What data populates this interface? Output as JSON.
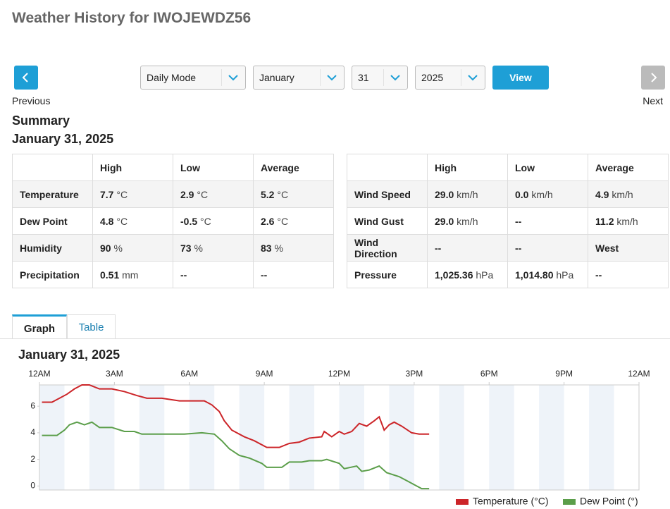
{
  "header": {
    "title": "Weather History for IWOJEWDZ56"
  },
  "controls": {
    "previous": "Previous",
    "next": "Next",
    "mode": "Daily Mode",
    "month": "January",
    "day": "31",
    "year": "2025",
    "view": "View"
  },
  "summary": {
    "title": "Summary",
    "date": "January 31, 2025"
  },
  "table_left": {
    "header": [
      "High",
      "Low",
      "Average"
    ],
    "rows": [
      {
        "label": "Temperature",
        "cells": [
          {
            "value": "7.7",
            "unit": "°C"
          },
          {
            "value": "2.9",
            "unit": "°C"
          },
          {
            "value": "5.2",
            "unit": "°C"
          }
        ]
      },
      {
        "label": "Dew Point",
        "cells": [
          {
            "value": "4.8",
            "unit": "°C"
          },
          {
            "value": "-0.5",
            "unit": "°C"
          },
          {
            "value": "2.6",
            "unit": "°C"
          }
        ]
      },
      {
        "label": "Humidity",
        "cells": [
          {
            "value": "90",
            "unit": "%"
          },
          {
            "value": "73",
            "unit": "%"
          },
          {
            "value": "83",
            "unit": "%"
          }
        ]
      },
      {
        "label": "Precipitation",
        "cells": [
          {
            "value": "0.51",
            "unit": "mm"
          },
          {
            "value": "--"
          },
          {
            "value": "--"
          }
        ]
      }
    ]
  },
  "table_right": {
    "header": [
      "High",
      "Low",
      "Average"
    ],
    "rows": [
      {
        "label": "Wind Speed",
        "cells": [
          {
            "value": "29.0",
            "unit": "km/h"
          },
          {
            "value": "0.0",
            "unit": "km/h"
          },
          {
            "value": "4.9",
            "unit": "km/h"
          }
        ]
      },
      {
        "label": "Wind Gust",
        "cells": [
          {
            "value": "29.0",
            "unit": "km/h"
          },
          {
            "value": "--"
          },
          {
            "value": "11.2",
            "unit": "km/h"
          }
        ]
      },
      {
        "label": "Wind Direction",
        "cells": [
          {
            "value": "--"
          },
          {
            "value": "--"
          },
          {
            "value": "West"
          }
        ]
      },
      {
        "label": "Pressure",
        "cells": [
          {
            "value": "1,025.36",
            "unit": "hPa"
          },
          {
            "value": "1,014.80",
            "unit": "hPa"
          },
          {
            "value": "--"
          }
        ]
      }
    ]
  },
  "tabs": [
    "Graph",
    "Table"
  ],
  "chart_data": {
    "type": "line",
    "title": "January 31, 2025",
    "xlim": [
      0,
      24
    ],
    "xticks": [
      {
        "value": 0,
        "label": "12AM"
      },
      {
        "value": 3,
        "label": "3AM"
      },
      {
        "value": 6,
        "label": "6AM"
      },
      {
        "value": 9,
        "label": "9AM"
      },
      {
        "value": 12,
        "label": "12PM"
      },
      {
        "value": 15,
        "label": "3PM"
      },
      {
        "value": 18,
        "label": "6PM"
      },
      {
        "value": 21,
        "label": "9PM"
      },
      {
        "value": 24,
        "label": "12AM"
      }
    ],
    "ylim": [
      -0.3,
      7.6
    ],
    "yticks": [
      0,
      2,
      4,
      6
    ],
    "series": [
      {
        "name": "Temperature (°C)",
        "color": "#cc2529",
        "x": [
          0.1,
          0.5,
          0.8,
          1.1,
          1.4,
          1.7,
          2.0,
          2.4,
          2.9,
          3.4,
          3.9,
          4.3,
          4.9,
          5.6,
          6.6,
          6.9,
          7.2,
          7.4,
          7.7,
          8.2,
          8.6,
          9.1,
          9.6,
          10.0,
          10.4,
          10.8,
          11.3,
          11.4,
          11.7,
          12.0,
          12.2,
          12.5,
          12.8,
          13.1,
          13.4,
          13.6,
          13.8,
          14.0,
          14.2,
          14.5,
          14.9,
          15.2,
          15.6
        ],
        "values": [
          6.3,
          6.3,
          6.6,
          6.9,
          7.3,
          7.6,
          7.6,
          7.3,
          7.3,
          7.1,
          6.8,
          6.6,
          6.6,
          6.4,
          6.4,
          6.1,
          5.6,
          4.9,
          4.2,
          3.7,
          3.4,
          2.9,
          2.9,
          3.2,
          3.3,
          3.6,
          3.7,
          4.1,
          3.7,
          4.1,
          3.9,
          4.1,
          4.7,
          4.5,
          4.9,
          5.2,
          4.2,
          4.6,
          4.8,
          4.5,
          4.0,
          3.9,
          3.9
        ]
      },
      {
        "name": "Dew Point (°)",
        "color": "#5b9e4a",
        "x": [
          0.1,
          0.7,
          1.0,
          1.2,
          1.5,
          1.8,
          2.1,
          2.4,
          2.9,
          3.4,
          3.8,
          4.1,
          4.5,
          4.9,
          5.8,
          6.5,
          7.0,
          7.3,
          7.6,
          8.0,
          8.4,
          8.9,
          9.1,
          9.7,
          10.0,
          10.5,
          10.8,
          11.3,
          11.5,
          12.0,
          12.2,
          12.7,
          12.9,
          13.2,
          13.6,
          13.9,
          14.4,
          14.7,
          15.1,
          15.3,
          15.6
        ],
        "values": [
          3.8,
          3.8,
          4.2,
          4.6,
          4.8,
          4.6,
          4.8,
          4.4,
          4.4,
          4.1,
          4.1,
          3.9,
          3.9,
          3.9,
          3.9,
          4.0,
          3.9,
          3.4,
          2.8,
          2.3,
          2.1,
          1.7,
          1.4,
          1.4,
          1.8,
          1.8,
          1.9,
          1.9,
          2.0,
          1.7,
          1.3,
          1.5,
          1.1,
          1.2,
          1.5,
          1.0,
          0.7,
          0.4,
          0.0,
          -0.2,
          -0.2
        ]
      }
    ]
  }
}
